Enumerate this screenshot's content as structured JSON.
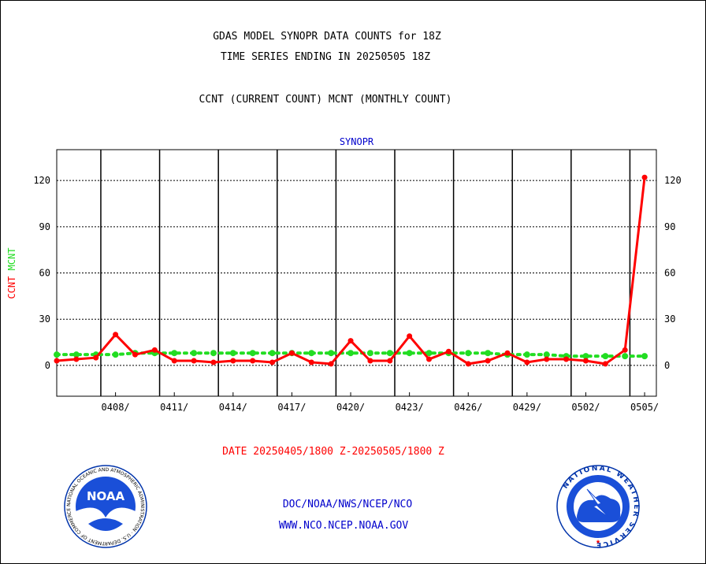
{
  "header": {
    "title_line1": "GDAS MODEL SYNOPR DATA COUNTS for 18Z",
    "title_line2": "TIME SERIES ENDING IN 20250505 18Z",
    "subtitle": "CCNT (CURRENT COUNT) MCNT (MONTHLY COUNT)"
  },
  "footer": {
    "date_range": "DATE 20250405/1800 Z-20250505/1800 Z",
    "credit_line1": "DOC/NOAA/NWS/NCEP/NCO",
    "credit_line2": "WWW.NCO.NCEP.NOAA.GOV"
  },
  "logos": {
    "noaa_text": "NOAA",
    "noaa_ring_text": "NATIONAL OCEANIC AND ATMOSPHERIC ADMINISTRATION · U.S. DEPARTMENT OF COMMERCE",
    "nws_ring_text": "NATIONAL WEATHER SERVICE"
  },
  "colors": {
    "ccnt": "#ff0000",
    "mcnt": "#22dd22",
    "plot_label": "#0000cc",
    "grid": "#000000"
  },
  "chart_data": {
    "type": "line",
    "title": "SYNOPR",
    "ylabel_series": [
      {
        "text": "CCNT",
        "color": "#ff0000"
      },
      {
        "text": "MCNT",
        "color": "#22dd22"
      }
    ],
    "ylim": [
      -20,
      140
    ],
    "yticks": [
      0,
      30,
      60,
      90,
      120
    ],
    "xlim": [
      0,
      30.6
    ],
    "x_tick_labels": [
      "0408/",
      "0411/",
      "0414/",
      "0417/",
      "0420/",
      "0423/",
      "0426/",
      "0429/",
      "0502/",
      "0505/"
    ],
    "x_tick_positions": [
      3,
      6,
      9,
      12,
      15,
      18,
      21,
      24,
      27,
      30
    ],
    "x_major_dashed": [
      2.25,
      5.25,
      8.25,
      11.25,
      14.25,
      17.25,
      20.25,
      23.25,
      26.25,
      29.25
    ],
    "grid": true,
    "legend": "left",
    "series": [
      {
        "name": "CCNT",
        "color": "#ff0000",
        "x": [
          0,
          1,
          2,
          3,
          4,
          5,
          6,
          7,
          8,
          9,
          10,
          11,
          12,
          13,
          14,
          15,
          16,
          17,
          18,
          19,
          20,
          21,
          22,
          23,
          24,
          25,
          26,
          27,
          28,
          29,
          30
        ],
        "values": [
          3,
          4,
          5,
          20,
          7,
          10,
          3,
          3,
          2,
          3,
          3,
          2,
          8,
          2,
          1,
          16,
          3,
          3,
          19,
          4,
          9,
          1,
          3,
          8,
          2,
          4,
          4,
          3,
          1,
          10,
          122
        ]
      },
      {
        "name": "MCNT",
        "color": "#22dd22",
        "x": [
          0,
          1,
          2,
          3,
          4,
          5,
          6,
          7,
          8,
          9,
          10,
          11,
          12,
          13,
          14,
          15,
          16,
          17,
          18,
          19,
          20,
          21,
          22,
          23,
          24,
          25,
          26,
          27,
          28,
          29,
          30
        ],
        "values": [
          7,
          7,
          7,
          7,
          8,
          8,
          8,
          8,
          8,
          8,
          8,
          8,
          8,
          8,
          8,
          8,
          8,
          8,
          8,
          8,
          8,
          8,
          8,
          7,
          7,
          7,
          6,
          6,
          6,
          6,
          6
        ]
      }
    ]
  }
}
